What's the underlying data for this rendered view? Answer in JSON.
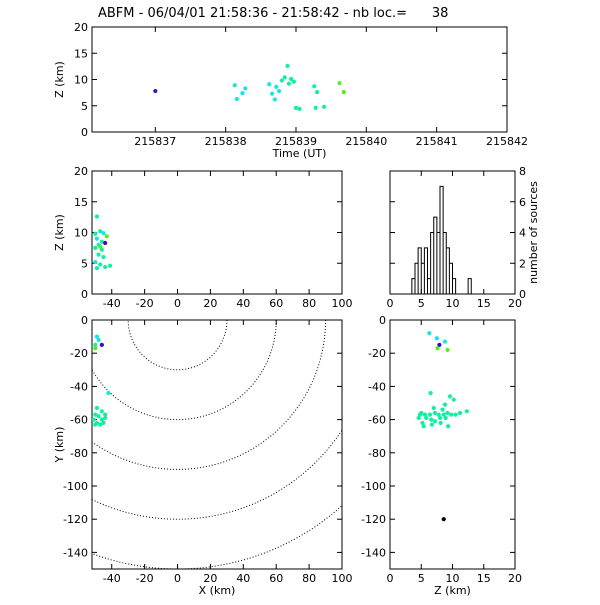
{
  "title": "ABFM - 06/04/01 21:58:36 - 21:58:42 - nb loc.=      38",
  "colors": {
    "axes": "#000000",
    "background": "#ffffff",
    "early": "#3b0fbf",
    "mid": "#16e6e0",
    "main": "#10f0a0",
    "late": "#55ee22"
  },
  "chart_data": [
    {
      "id": "time-height",
      "type": "scatter",
      "xlabel": "Time (UT)",
      "ylabel": "Z (km)",
      "xlim": [
        215836.1,
        215842
      ],
      "ylim": [
        0,
        20
      ],
      "xticks": [
        215837,
        215838,
        215839,
        215840,
        215841,
        215842
      ],
      "yticks": [
        0,
        5,
        10,
        15,
        20
      ],
      "points": [
        {
          "x": 215837.0,
          "y": 7.8,
          "c": "early"
        },
        {
          "x": 215838.13,
          "y": 8.9,
          "c": "mid"
        },
        {
          "x": 215838.16,
          "y": 6.3,
          "c": "mid"
        },
        {
          "x": 215838.24,
          "y": 7.4,
          "c": "mid"
        },
        {
          "x": 215838.28,
          "y": 8.3,
          "c": "mid"
        },
        {
          "x": 215838.62,
          "y": 9.1,
          "c": "mid"
        },
        {
          "x": 215838.66,
          "y": 7.3,
          "c": "mid"
        },
        {
          "x": 215838.7,
          "y": 6.2,
          "c": "mid"
        },
        {
          "x": 215838.72,
          "y": 8.6,
          "c": "mid"
        },
        {
          "x": 215838.76,
          "y": 7.8,
          "c": "mid"
        },
        {
          "x": 215838.8,
          "y": 9.8,
          "c": "main"
        },
        {
          "x": 215838.84,
          "y": 10.4,
          "c": "main"
        },
        {
          "x": 215838.88,
          "y": 12.6,
          "c": "main"
        },
        {
          "x": 215838.9,
          "y": 9.2,
          "c": "main"
        },
        {
          "x": 215838.93,
          "y": 10.1,
          "c": "main"
        },
        {
          "x": 215838.97,
          "y": 9.6,
          "c": "main"
        },
        {
          "x": 215839.0,
          "y": 4.6,
          "c": "main"
        },
        {
          "x": 215839.05,
          "y": 4.4,
          "c": "main"
        },
        {
          "x": 215839.26,
          "y": 8.7,
          "c": "main"
        },
        {
          "x": 215839.3,
          "y": 7.6,
          "c": "main"
        },
        {
          "x": 215839.28,
          "y": 4.6,
          "c": "main"
        },
        {
          "x": 215839.4,
          "y": 4.8,
          "c": "main"
        },
        {
          "x": 215839.62,
          "y": 9.3,
          "c": "late"
        },
        {
          "x": 215839.68,
          "y": 7.6,
          "c": "late"
        }
      ]
    },
    {
      "id": "xz",
      "type": "scatter",
      "xlabel": "",
      "ylabel": "Z (km)",
      "xlim": [
        -52,
        100
      ],
      "ylim": [
        0,
        20
      ],
      "xticks": [
        -40,
        -20,
        0,
        20,
        40,
        60,
        80,
        100
      ],
      "yticks": [
        0,
        5,
        10,
        15,
        20
      ],
      "points": [
        {
          "x": -49,
          "y": 12.6,
          "c": "main"
        },
        {
          "x": -47,
          "y": 10.2,
          "c": "main"
        },
        {
          "x": -50,
          "y": 9.8,
          "c": "main"
        },
        {
          "x": -45,
          "y": 9.9,
          "c": "mid"
        },
        {
          "x": -49,
          "y": 9.0,
          "c": "mid"
        },
        {
          "x": -46,
          "y": 8.5,
          "c": "main"
        },
        {
          "x": -44,
          "y": 8.3,
          "c": "early"
        },
        {
          "x": -48,
          "y": 8.0,
          "c": "mid"
        },
        {
          "x": -50,
          "y": 7.5,
          "c": "main"
        },
        {
          "x": -46,
          "y": 7.2,
          "c": "main"
        },
        {
          "x": -48,
          "y": 6.4,
          "c": "main"
        },
        {
          "x": -45,
          "y": 6.0,
          "c": "main"
        },
        {
          "x": -50,
          "y": 5.2,
          "c": "mid"
        },
        {
          "x": -47,
          "y": 4.8,
          "c": "main"
        },
        {
          "x": -44,
          "y": 4.4,
          "c": "main"
        },
        {
          "x": -41,
          "y": 4.6,
          "c": "main"
        },
        {
          "x": -49,
          "y": 4.2,
          "c": "main"
        },
        {
          "x": -43,
          "y": 9.4,
          "c": "late"
        },
        {
          "x": -47,
          "y": 7.7,
          "c": "late"
        }
      ]
    },
    {
      "id": "histogram",
      "type": "bar",
      "xlabel": "",
      "ylabel": "number of sources",
      "xlim": [
        0,
        20
      ],
      "ylim": [
        0,
        8
      ],
      "xticks": [
        0,
        5,
        10,
        15,
        20
      ],
      "yticks": [
        0,
        2,
        4,
        6,
        8
      ],
      "bin_width": 0.5,
      "bins_start": [
        3.5,
        4,
        4.5,
        5,
        5.5,
        6,
        6.5,
        7,
        7.5,
        8,
        8.5,
        9,
        9.5,
        10,
        10.5,
        11,
        11.5,
        12,
        12.5,
        13
      ],
      "values": [
        1,
        2,
        3,
        2,
        3,
        1,
        4,
        5,
        4,
        7,
        4,
        3,
        2,
        1,
        0,
        0,
        0,
        0,
        1,
        0
      ]
    },
    {
      "id": "xy",
      "type": "scatter",
      "xlabel": "X (km)",
      "ylabel": "Y (km)",
      "xlim": [
        -52,
        100
      ],
      "ylim": [
        -150,
        0
      ],
      "xticks": [
        -40,
        -20,
        0,
        20,
        40,
        60,
        80,
        100
      ],
      "yticks": [
        -140,
        -120,
        -100,
        -80,
        -60,
        -40,
        -20,
        0
      ],
      "range_rings_km": [
        30,
        60,
        90,
        120,
        150
      ],
      "points": [
        {
          "x": -49,
          "y": -10,
          "c": "mid"
        },
        {
          "x": -48,
          "y": -12,
          "c": "mid"
        },
        {
          "x": -50,
          "y": -15,
          "c": "main"
        },
        {
          "x": -50,
          "y": -17,
          "c": "late"
        },
        {
          "x": -46,
          "y": -15,
          "c": "early"
        },
        {
          "x": -42,
          "y": -44,
          "c": "mid"
        },
        {
          "x": -49,
          "y": -53,
          "c": "main"
        },
        {
          "x": -46,
          "y": -55,
          "c": "main"
        },
        {
          "x": -50,
          "y": -57,
          "c": "main"
        },
        {
          "x": -44,
          "y": -57,
          "c": "main"
        },
        {
          "x": -48,
          "y": -58,
          "c": "main"
        },
        {
          "x": -51,
          "y": -60,
          "c": "main"
        },
        {
          "x": -46,
          "y": -60,
          "c": "main"
        },
        {
          "x": -49,
          "y": -62,
          "c": "main"
        },
        {
          "x": -45,
          "y": -62,
          "c": "main"
        },
        {
          "x": -50,
          "y": -63,
          "c": "main"
        },
        {
          "x": -47,
          "y": -63,
          "c": "main"
        },
        {
          "x": -44,
          "y": -59,
          "c": "main"
        }
      ]
    },
    {
      "id": "zy",
      "type": "scatter",
      "xlabel": "Z (km)",
      "ylabel": "",
      "xlim": [
        0,
        20
      ],
      "ylim": [
        -150,
        0
      ],
      "xticks": [
        0,
        5,
        10,
        15,
        20
      ],
      "yticks": [
        -140,
        -120,
        -100,
        -80,
        -60,
        -40,
        -20,
        0
      ],
      "points": [
        {
          "x": 6.3,
          "y": -8,
          "c": "mid"
        },
        {
          "x": 7.5,
          "y": -11,
          "c": "mid"
        },
        {
          "x": 8.8,
          "y": -13,
          "c": "mid"
        },
        {
          "x": 7.9,
          "y": -15,
          "c": "early"
        },
        {
          "x": 7.6,
          "y": -17,
          "c": "late"
        },
        {
          "x": 9.2,
          "y": -18,
          "c": "late"
        },
        {
          "x": 6.5,
          "y": -44,
          "c": "main"
        },
        {
          "x": 9.6,
          "y": -46,
          "c": "main"
        },
        {
          "x": 10.2,
          "y": -48,
          "c": "main"
        },
        {
          "x": 8.8,
          "y": -51,
          "c": "main"
        },
        {
          "x": 7.0,
          "y": -53,
          "c": "main"
        },
        {
          "x": 8.4,
          "y": -54,
          "c": "main"
        },
        {
          "x": 5.0,
          "y": -56,
          "c": "main"
        },
        {
          "x": 5.6,
          "y": -57,
          "c": "main"
        },
        {
          "x": 6.4,
          "y": -57,
          "c": "main"
        },
        {
          "x": 7.2,
          "y": -56,
          "c": "main"
        },
        {
          "x": 7.8,
          "y": -57,
          "c": "main"
        },
        {
          "x": 8.6,
          "y": -57,
          "c": "main"
        },
        {
          "x": 9.2,
          "y": -56,
          "c": "main"
        },
        {
          "x": 9.8,
          "y": -57,
          "c": "main"
        },
        {
          "x": 10.5,
          "y": -57,
          "c": "main"
        },
        {
          "x": 11.2,
          "y": -56,
          "c": "main"
        },
        {
          "x": 12.3,
          "y": -55,
          "c": "main"
        },
        {
          "x": 4.6,
          "y": -59,
          "c": "main"
        },
        {
          "x": 5.8,
          "y": -59,
          "c": "main"
        },
        {
          "x": 6.6,
          "y": -60,
          "c": "main"
        },
        {
          "x": 8.0,
          "y": -59,
          "c": "main"
        },
        {
          "x": 8.9,
          "y": -59,
          "c": "main"
        },
        {
          "x": 7.2,
          "y": -61,
          "c": "main"
        },
        {
          "x": 5.2,
          "y": -62,
          "c": "main"
        },
        {
          "x": 8.1,
          "y": -62,
          "c": "main"
        },
        {
          "x": 6.7,
          "y": -63,
          "c": "main"
        },
        {
          "x": 5.4,
          "y": -64,
          "c": "main"
        },
        {
          "x": 9.3,
          "y": -64,
          "c": "main"
        },
        {
          "x": 4.8,
          "y": -57,
          "c": "main"
        },
        {
          "x": 8.6,
          "y": -120,
          "c": "axes"
        }
      ]
    }
  ]
}
